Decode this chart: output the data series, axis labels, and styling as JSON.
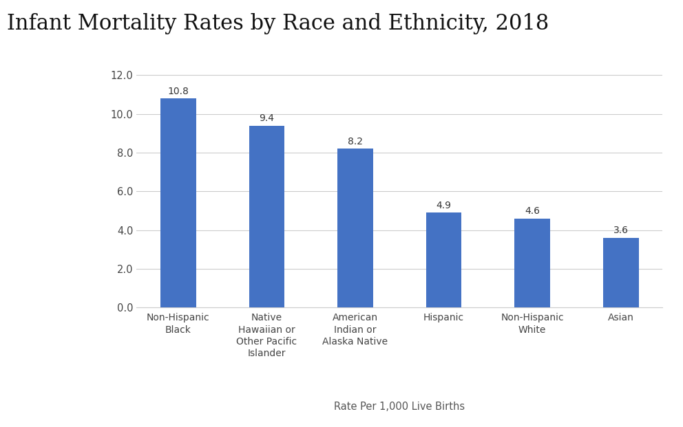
{
  "title": "Infant Mortality Rates by Race and Ethnicity, 2018",
  "categories": [
    "Non-Hispanic\nBlack",
    "Native\nHawaiian or\nOther Pacific\nIslander",
    "American\nIndian or\nAlaska Native",
    "Hispanic",
    "Non-Hispanic\nWhite",
    "Asian"
  ],
  "values": [
    10.8,
    9.4,
    8.2,
    4.9,
    4.6,
    3.6
  ],
  "bar_color": "#4472C4",
  "xlabel": "Rate Per 1,000 Live Births",
  "ylim": [
    0,
    12.8
  ],
  "yticks": [
    0.0,
    2.0,
    4.0,
    6.0,
    8.0,
    10.0,
    12.0
  ],
  "title_fontsize": 22,
  "label_fontsize": 10,
  "tick_fontsize": 10.5,
  "xlabel_fontsize": 10.5,
  "bar_value_fontsize": 10,
  "background_color": "#ffffff",
  "grid_color": "#cccccc"
}
